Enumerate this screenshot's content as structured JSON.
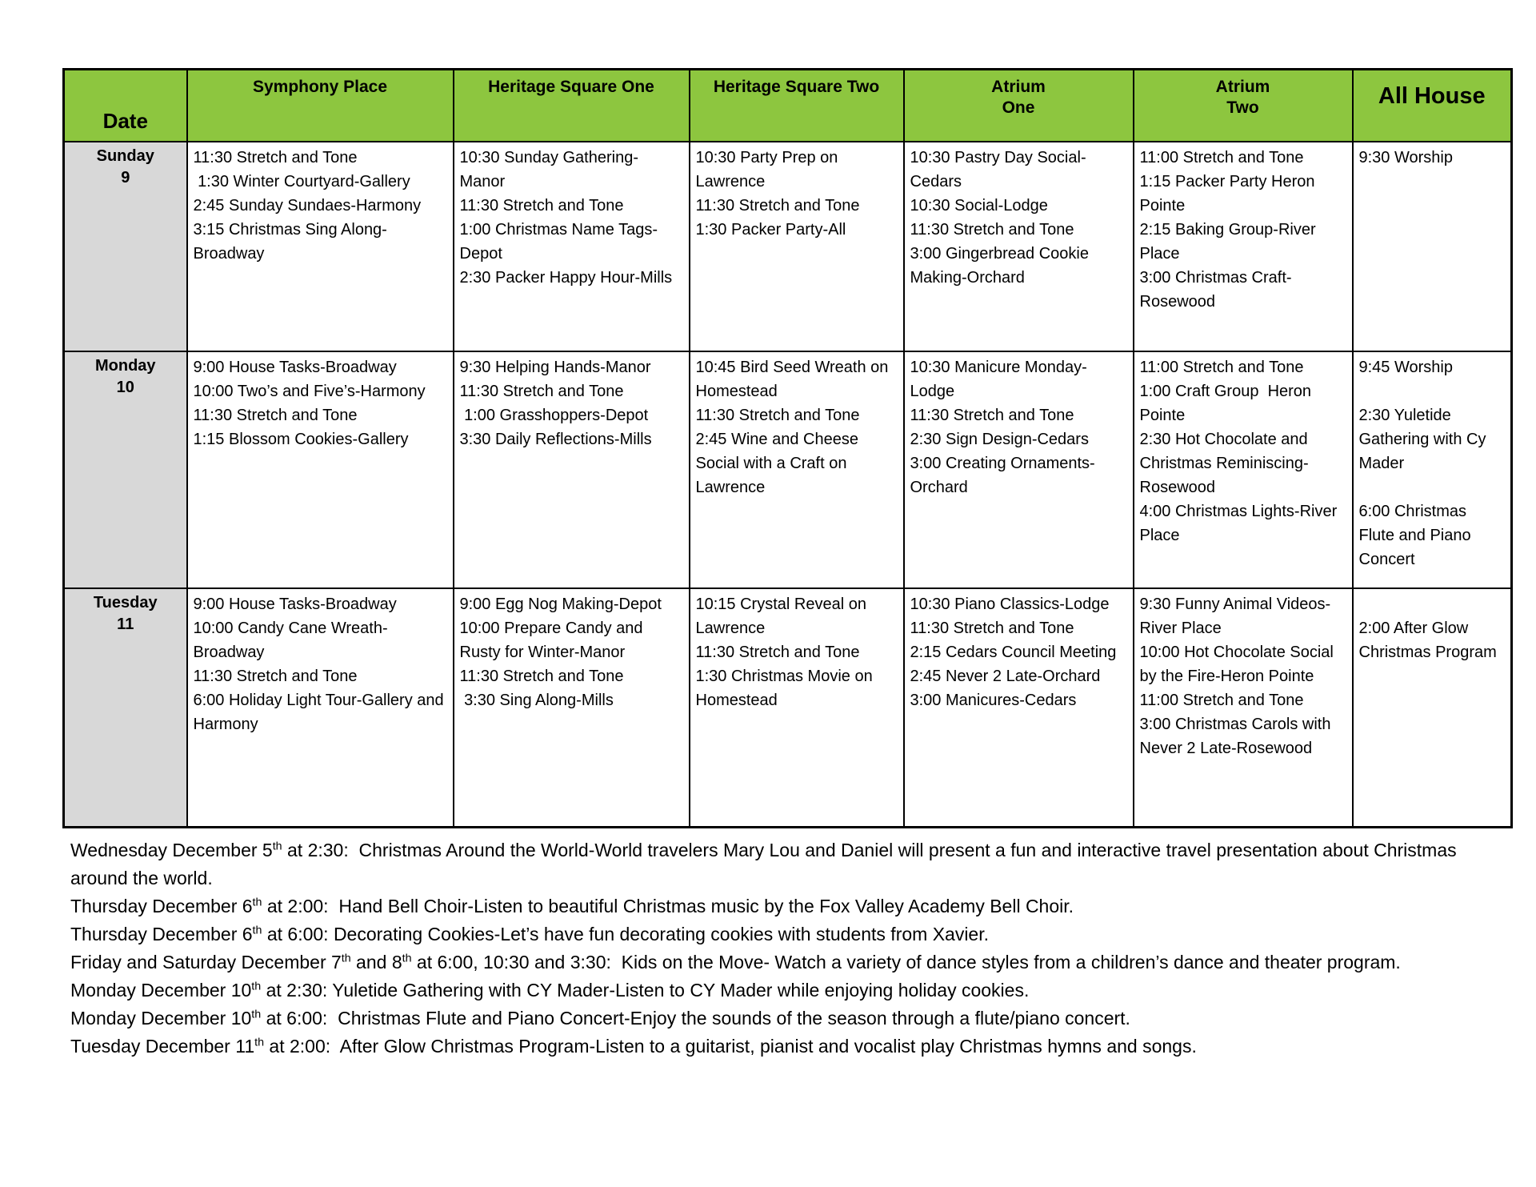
{
  "colors": {
    "header_green": "#8DC63F",
    "date_gray": "#D8D8D8",
    "border": "#000000",
    "page_bg": "#FFFFFF"
  },
  "table": {
    "date_header": "Date",
    "columns": [
      {
        "name": "symphony-place",
        "lines": [
          "Symphony Place"
        ]
      },
      {
        "name": "heritage-square-one",
        "lines": [
          "Heritage Square One"
        ]
      },
      {
        "name": "heritage-square-two",
        "lines": [
          "Heritage Square Two"
        ]
      },
      {
        "name": "atrium-one",
        "lines": [
          "Atrium",
          "One"
        ]
      },
      {
        "name": "atrium-two",
        "lines": [
          "Atrium",
          "Two"
        ]
      },
      {
        "name": "all-house",
        "lines": [
          "All House"
        ]
      }
    ],
    "rows": [
      {
        "day": "Sunday",
        "date": "9",
        "cells": [
          [
            "11:30 Stretch and Tone",
            " 1:30 Winter Courtyard-Gallery",
            "2:45 Sunday Sundaes-Harmony",
            "3:15 Christmas Sing Along-Broadway"
          ],
          [
            "10:30 Sunday Gathering-Manor",
            "11:30 Stretch and Tone",
            "1:00 Christmas Name Tags-Depot",
            "2:30 Packer Happy Hour-Mills"
          ],
          [
            "10:30 Party Prep on Lawrence",
            "11:30 Stretch and Tone",
            "1:30 Packer Party-All"
          ],
          [
            "10:30 Pastry Day Social-Cedars",
            "10:30 Social-Lodge",
            "11:30 Stretch and Tone",
            "3:00 Gingerbread Cookie Making-Orchard"
          ],
          [
            "11:00 Stretch and Tone",
            "1:15 Packer Party Heron Pointe",
            "2:15 Baking Group-River Place",
            "3:00 Christmas Craft-Rosewood"
          ],
          [
            "9:30 Worship"
          ]
        ]
      },
      {
        "day": "Monday",
        "date": "10",
        "cells": [
          [
            "9:00 House Tasks-Broadway",
            "10:00 Two’s and Five’s-Harmony",
            "11:30 Stretch and Tone",
            "1:15 Blossom Cookies-Gallery"
          ],
          [
            "9:30 Helping Hands-Manor",
            "11:30 Stretch and Tone",
            " 1:00 Grasshoppers-Depot",
            "3:30 Daily Reflections-Mills"
          ],
          [
            "10:45 Bird Seed Wreath on Homestead",
            "11:30 Stretch and Tone",
            "2:45 Wine and Cheese Social with a Craft on Lawrence"
          ],
          [
            "10:30 Manicure Monday-Lodge",
            "11:30 Stretch and Tone",
            "2:30 Sign Design-Cedars",
            "3:00 Creating Ornaments-Orchard"
          ],
          [
            "11:00 Stretch and Tone",
            "1:00 Craft Group  Heron Pointe",
            "2:30 Hot Chocolate and Christmas Reminiscing-Rosewood",
            "4:00 Christmas Lights-River Place"
          ],
          [
            "9:45 Worship",
            "",
            "2:30 Yuletide Gathering with Cy Mader",
            "",
            "6:00 Christmas Flute and Piano Concert"
          ]
        ]
      },
      {
        "day": "Tuesday",
        "date": "11",
        "cells": [
          [
            "9:00 House Tasks-Broadway",
            "10:00 Candy Cane Wreath-Broadway",
            "11:30 Stretch and Tone",
            "6:00 Holiday Light Tour-Gallery and Harmony"
          ],
          [
            "9:00 Egg Nog Making-Depot",
            "10:00 Prepare Candy and Rusty for Winter-Manor",
            "11:30 Stretch and Tone",
            " 3:30 Sing Along-Mills"
          ],
          [
            "10:15 Crystal Reveal on Lawrence",
            "11:30 Stretch and Tone",
            "1:30 Christmas Movie on Homestead"
          ],
          [
            "10:30 Piano Classics-Lodge",
            "11:30 Stretch and Tone",
            "2:15 Cedars Council Meeting",
            "2:45 Never 2 Late-Orchard",
            "3:00 Manicures-Cedars"
          ],
          [
            "9:30 Funny Animal Videos-River Place",
            "10:00 Hot Chocolate Social by the Fire-Heron Pointe",
            "11:00 Stretch and Tone",
            "3:00 Christmas Carols with Never 2 Late-Rosewood"
          ],
          [
            "",
            "2:00 After Glow Christmas Program"
          ]
        ]
      }
    ]
  },
  "notes": [
    [
      {
        "t": "Wednesday December 5"
      },
      {
        "sup": "th"
      },
      {
        "t": " at 2:30:  Christmas Around the World-World travelers Mary Lou and Daniel will present a fun and interactive travel presentation about Christmas around the world."
      }
    ],
    [
      {
        "t": "Thursday December 6"
      },
      {
        "sup": "th"
      },
      {
        "t": " at 2:00:  Hand Bell Choir-Listen to beautiful Christmas music by the Fox Valley Academy Bell Choir."
      }
    ],
    [
      {
        "t": "Thursday December 6"
      },
      {
        "sup": "th"
      },
      {
        "t": " at 6:00: Decorating Cookies-Let’s have fun decorating cookies with students from Xavier."
      }
    ],
    [
      {
        "t": "Friday and Saturday December 7"
      },
      {
        "sup": "th"
      },
      {
        "t": " and 8"
      },
      {
        "sup": "th"
      },
      {
        "t": " at 6:00, 10:30 and 3:30:  Kids on the Move- Watch a variety of dance styles from a children’s dance and theater program."
      }
    ],
    [
      {
        "t": "Monday December 10"
      },
      {
        "sup": "th"
      },
      {
        "t": " at 2:30: Yuletide Gathering with CY Mader-Listen to CY Mader while enjoying holiday cookies."
      }
    ],
    [
      {
        "t": "Monday December 10"
      },
      {
        "sup": "th"
      },
      {
        "t": " at 6:00:  Christmas Flute and Piano Concert-Enjoy the sounds of the season through a flute/piano concert."
      }
    ],
    [
      {
        "t": "Tuesday December 11"
      },
      {
        "sup": "th"
      },
      {
        "t": " at 2:00:  After Glow Christmas Program-Listen to a guitarist, pianist and vocalist play Christmas hymns and songs."
      }
    ]
  ]
}
